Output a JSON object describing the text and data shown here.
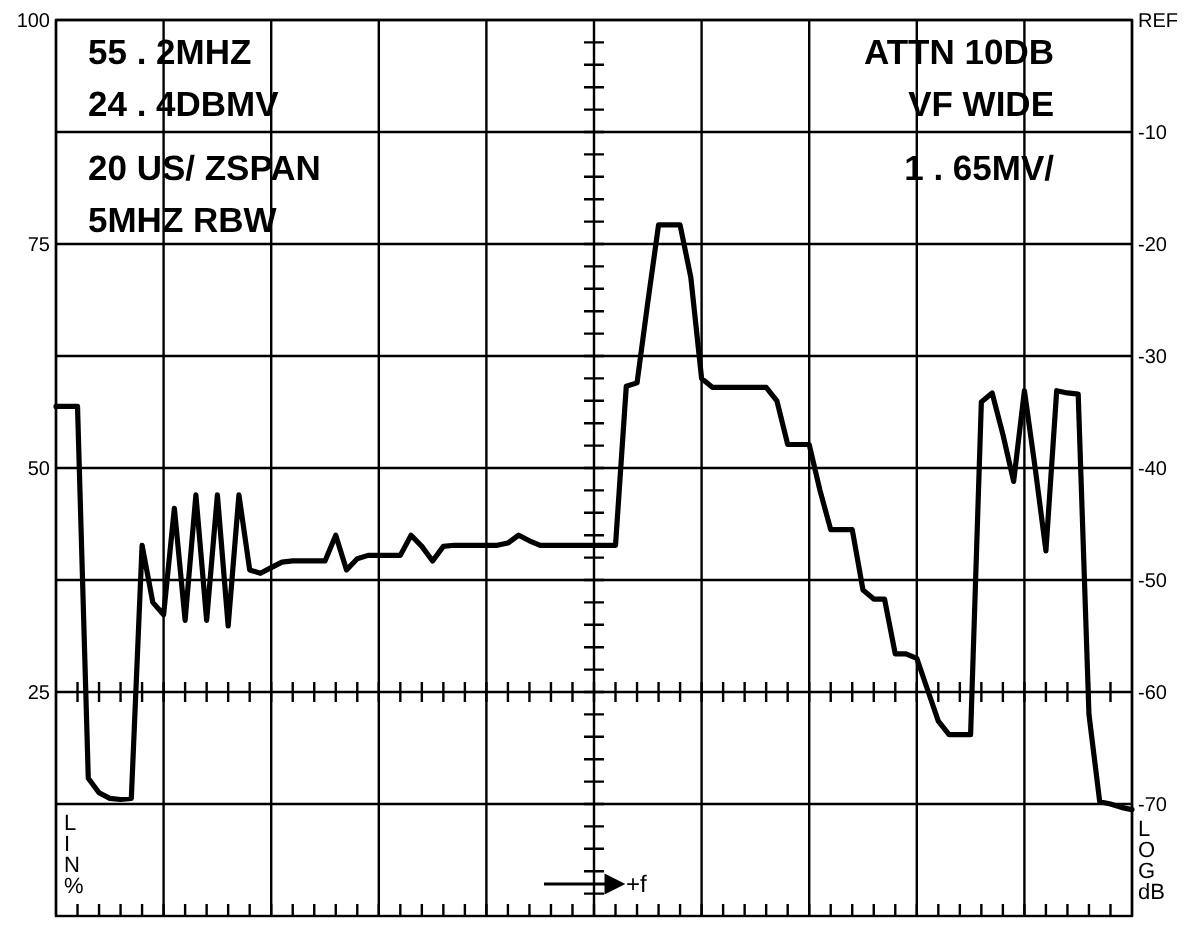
{
  "chart_data": {
    "type": "line",
    "xlabel": "+f",
    "ylabel": "LIN %",
    "y2label": "LOG dB",
    "annotations": [
      "55 . 2MHZ",
      "24 . 4DBMV",
      "20 US/ ZSPAN",
      "5MHZ RBW",
      "ATTN 10DB",
      "VF WIDE",
      "1 . 65MV/"
    ],
    "categories": [
      null,
      null,
      null,
      null,
      null,
      null,
      null,
      null,
      null,
      null,
      null,
      null,
      null,
      null,
      null,
      null,
      null,
      null,
      null,
      null,
      null,
      null,
      null,
      null,
      null,
      null,
      null,
      null,
      null,
      null,
      null,
      null,
      null,
      null,
      null,
      null,
      null,
      null,
      null,
      null,
      null,
      null,
      null,
      null,
      null,
      null,
      null,
      null,
      null,
      null,
      null,
      null,
      null,
      null,
      null,
      null,
      null,
      null,
      null,
      null,
      null,
      null,
      null,
      null,
      null,
      null,
      null,
      null,
      null,
      null,
      null,
      null,
      null,
      null,
      null,
      null,
      null,
      null,
      null,
      null,
      null,
      null,
      null,
      null,
      null,
      null,
      null,
      null,
      null,
      null,
      null,
      null,
      null,
      null,
      null,
      null,
      null,
      null,
      null,
      null,
      null
    ],
    "ylim": [
      0,
      100
    ],
    "yticks": [
      25,
      50,
      75,
      100
    ],
    "y2lim": [
      -80,
      0
    ],
    "y2ticks": [
      {
        "value": 0,
        "label": "REF"
      },
      -10,
      -20,
      -30,
      -40,
      -50,
      -60,
      -70
    ],
    "grid": true,
    "line_style": "solid",
    "series": [
      {
        "color": "#000000",
        "axis": "y2",
        "values": [
          -34.5,
          -34.5,
          -34.5,
          -67.7,
          -69.0,
          -69.5,
          -69.6,
          -69.5,
          -46.9,
          -52.0,
          -53.1,
          -43.6,
          -53.6,
          -42.4,
          -53.6,
          -42.4,
          -54.1,
          -42.4,
          -49.1,
          -49.4,
          -48.9,
          -48.4,
          -48.3,
          -48.3,
          -48.3,
          -48.3,
          -46.0,
          -49.1,
          -48.1,
          -47.8,
          -47.8,
          -47.8,
          -47.8,
          -46.0,
          -47.0,
          -48.3,
          -47.0,
          -46.9,
          -46.9,
          -46.9,
          -46.9,
          -46.9,
          -46.7,
          -46.0,
          -46.5,
          -46.9,
          -46.9,
          -46.9,
          -46.9,
          -46.9,
          -46.9,
          -46.9,
          -46.9,
          -32.7,
          -32.4,
          -25.2,
          -18.3,
          -18.3,
          -18.3,
          -23.0,
          -32.0,
          -32.8,
          -32.8,
          -32.8,
          -32.8,
          -32.8,
          -32.8,
          -34.0,
          -37.9,
          -37.9,
          -37.9,
          -42.0,
          -45.5,
          -45.5,
          -45.5,
          -50.9,
          -51.7,
          -51.7,
          -56.6,
          -56.6,
          -57.0,
          -59.8,
          -62.6,
          -63.8,
          -63.8,
          -63.8,
          -34.1,
          -33.3,
          -37.0,
          -41.2,
          -33.1,
          -40.0,
          -47.4,
          -33.1,
          -33.3,
          -33.4,
          -62.0,
          -69.8,
          -70.0,
          -70.3,
          -70.5
        ]
      }
    ]
  }
}
